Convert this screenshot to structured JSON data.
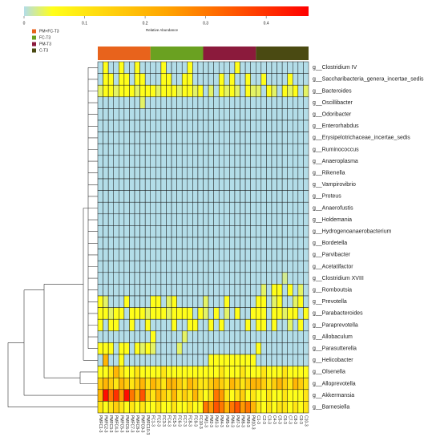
{
  "chart_data": {
    "type": "heatmap",
    "legend_title": "Relative Abundance",
    "clim": [
      0,
      0.47
    ],
    "cticks": [
      0,
      0.1,
      0.2,
      0.3,
      0.4
    ],
    "colors": [
      "#b3dde8",
      "#ffff1a",
      "#ffa500",
      "#ff0000"
    ],
    "groups": [
      {
        "name": "PM+FC-T3",
        "color": "#e8631c",
        "size": 10
      },
      {
        "name": "FC-T3",
        "color": "#6aa121",
        "size": 10
      },
      {
        "name": "PM-T3",
        "color": "#8b1a3c",
        "size": 10
      },
      {
        "name": "C-T3",
        "color": "#4a4a12",
        "size": 10
      }
    ],
    "columns": [
      "PMFC1-3",
      "PMFC2-3",
      "PMFC3-3",
      "PMFC4-3",
      "PMFC5-3",
      "PMFC6-3",
      "PMFC7-3",
      "PMFC8-3",
      "PMFC9-3",
      "PMFC10-3",
      "FC1-3",
      "FC2-3",
      "FC3-3",
      "FC4-3",
      "FC5-3",
      "FC6-3",
      "FC7-3",
      "FC8-3",
      "FC9-3",
      "FC10-3",
      "PM1-3",
      "PM2-3",
      "PM3-3",
      "PM4-3",
      "PM5-3",
      "PM6-3",
      "PM7-3",
      "PM8-3",
      "PM9-3",
      "PM10-3",
      "C1-3",
      "C2-3",
      "C3-3",
      "C4-3",
      "C5-3",
      "C6-3",
      "C7-3",
      "C8-3",
      "C9-3",
      "C10-3"
    ],
    "rows": [
      "g__Clostridium IV",
      "g__Saccharibacteria_genera_incertae_sedis",
      "g__Bacteroides",
      "g__Oscillibacter",
      "g__Odoribacter",
      "g__Enterorhabdus",
      "g__Erysipelotrichaceae_incertae_sedis",
      "g__Ruminococcus",
      "g__Anaeroplasma",
      "g__Rikenella",
      "g__Vampirovibrio",
      "g__Proteus",
      "g__Anaerofustis",
      "g__Holdemania",
      "g__Hydrogenoanaerobacterium",
      "g__Bordetella",
      "g__Parvibacter",
      "g__Acetatifactor",
      "g__Clostridium XVIII",
      "g__Romboutsia",
      "g__Prevotella",
      "g__Parabacteroides",
      "g__Paraprevotella",
      "g__Allobaculum",
      "g__Parasutterella",
      "g__Helicobacter",
      "g__Olsenella",
      "g__Alloprevotella",
      "g__Akkermansia",
      "g__Barnesiella"
    ],
    "values": [
      [
        0,
        0.05,
        0,
        0,
        0.05,
        0,
        0,
        0.05,
        0,
        0,
        0,
        0,
        0.05,
        0,
        0,
        0,
        0,
        0.05,
        0,
        0,
        0,
        0,
        0,
        0,
        0,
        0,
        0.05,
        0,
        0,
        0,
        0,
        0,
        0,
        0,
        0,
        0,
        0,
        0,
        0,
        0
      ],
      [
        0,
        0.05,
        0.05,
        0,
        0.05,
        0.05,
        0,
        0.05,
        0.05,
        0,
        0,
        0,
        0.05,
        0.05,
        0,
        0,
        0.05,
        0.05,
        0,
        0,
        0,
        0,
        0,
        0.05,
        0,
        0.05,
        0,
        0,
        0.05,
        0,
        0,
        0.05,
        0,
        0,
        0,
        0,
        0.05,
        0,
        0,
        0
      ],
      [
        0.03,
        0.05,
        0.05,
        0.03,
        0.05,
        0.05,
        0.05,
        0.03,
        0.05,
        0.05,
        0.05,
        0.03,
        0.05,
        0.05,
        0.05,
        0.03,
        0.05,
        0.05,
        0.03,
        0.05,
        0,
        0.03,
        0,
        0.05,
        0.03,
        0.05,
        0.03,
        0,
        0.05,
        0.03,
        0.03,
        0,
        0.05,
        0.03,
        0,
        0.05,
        0.03,
        0.05,
        0,
        0.03
      ],
      [
        0,
        0,
        0,
        0,
        0,
        0,
        0,
        0,
        0.03,
        0,
        0,
        0,
        0,
        0,
        0,
        0,
        0,
        0,
        0,
        0,
        0,
        0,
        0,
        0,
        0,
        0,
        0,
        0,
        0,
        0,
        0,
        0,
        0,
        0,
        0,
        0,
        0,
        0,
        0,
        0
      ],
      [
        0,
        0,
        0,
        0,
        0,
        0,
        0,
        0,
        0,
        0,
        0,
        0,
        0,
        0,
        0,
        0,
        0,
        0,
        0,
        0,
        0,
        0,
        0,
        0,
        0,
        0,
        0,
        0,
        0,
        0,
        0,
        0,
        0,
        0,
        0,
        0,
        0,
        0,
        0,
        0
      ],
      [
        0,
        0,
        0,
        0,
        0,
        0,
        0,
        0,
        0,
        0,
        0,
        0,
        0,
        0,
        0,
        0,
        0,
        0,
        0,
        0,
        0,
        0,
        0,
        0,
        0,
        0,
        0,
        0,
        0,
        0,
        0,
        0,
        0,
        0,
        0,
        0,
        0,
        0,
        0,
        0
      ],
      [
        0,
        0,
        0,
        0,
        0,
        0,
        0,
        0,
        0,
        0,
        0,
        0,
        0,
        0,
        0,
        0,
        0,
        0,
        0,
        0,
        0,
        0,
        0,
        0,
        0,
        0,
        0,
        0,
        0,
        0,
        0,
        0,
        0,
        0,
        0,
        0,
        0,
        0,
        0,
        0
      ],
      [
        0,
        0,
        0,
        0,
        0,
        0,
        0,
        0,
        0,
        0,
        0,
        0,
        0,
        0,
        0,
        0,
        0,
        0,
        0,
        0,
        0,
        0,
        0,
        0,
        0,
        0,
        0,
        0,
        0,
        0,
        0,
        0,
        0,
        0,
        0,
        0,
        0,
        0,
        0,
        0
      ],
      [
        0,
        0,
        0,
        0,
        0,
        0,
        0,
        0,
        0,
        0,
        0,
        0,
        0,
        0,
        0,
        0,
        0,
        0,
        0,
        0,
        0,
        0,
        0,
        0,
        0,
        0,
        0,
        0,
        0,
        0,
        0,
        0,
        0,
        0,
        0,
        0,
        0,
        0,
        0,
        0
      ],
      [
        0,
        0,
        0,
        0,
        0,
        0,
        0,
        0,
        0,
        0,
        0,
        0,
        0,
        0,
        0,
        0,
        0,
        0,
        0,
        0,
        0,
        0,
        0,
        0,
        0,
        0,
        0,
        0,
        0,
        0,
        0,
        0,
        0,
        0,
        0,
        0,
        0,
        0,
        0,
        0
      ],
      [
        0,
        0,
        0,
        0,
        0,
        0,
        0,
        0,
        0,
        0,
        0,
        0,
        0,
        0,
        0,
        0,
        0,
        0,
        0,
        0,
        0,
        0,
        0,
        0,
        0,
        0,
        0,
        0,
        0,
        0,
        0,
        0,
        0,
        0,
        0,
        0,
        0,
        0,
        0,
        0
      ],
      [
        0,
        0,
        0,
        0,
        0,
        0,
        0,
        0,
        0,
        0,
        0,
        0,
        0,
        0,
        0,
        0,
        0,
        0,
        0,
        0,
        0,
        0,
        0,
        0,
        0,
        0,
        0,
        0,
        0,
        0,
        0,
        0,
        0,
        0,
        0,
        0,
        0,
        0,
        0,
        0
      ],
      [
        0,
        0,
        0,
        0,
        0,
        0,
        0,
        0,
        0,
        0,
        0,
        0,
        0,
        0,
        0,
        0,
        0,
        0,
        0,
        0,
        0,
        0,
        0,
        0,
        0,
        0,
        0,
        0,
        0,
        0,
        0,
        0,
        0,
        0,
        0,
        0,
        0,
        0,
        0,
        0
      ],
      [
        0,
        0,
        0,
        0,
        0,
        0,
        0,
        0,
        0,
        0,
        0,
        0,
        0,
        0,
        0,
        0,
        0,
        0,
        0,
        0,
        0,
        0,
        0,
        0,
        0,
        0,
        0,
        0,
        0,
        0,
        0,
        0,
        0,
        0,
        0,
        0,
        0,
        0,
        0,
        0
      ],
      [
        0,
        0,
        0,
        0,
        0,
        0,
        0,
        0,
        0,
        0,
        0,
        0,
        0,
        0,
        0,
        0,
        0,
        0,
        0,
        0,
        0,
        0,
        0,
        0,
        0,
        0,
        0,
        0,
        0,
        0,
        0,
        0,
        0,
        0,
        0,
        0,
        0,
        0,
        0,
        0
      ],
      [
        0,
        0,
        0,
        0,
        0,
        0,
        0,
        0,
        0,
        0,
        0,
        0,
        0,
        0,
        0,
        0,
        0,
        0,
        0,
        0,
        0,
        0,
        0,
        0,
        0,
        0,
        0,
        0,
        0,
        0,
        0,
        0,
        0,
        0,
        0,
        0,
        0,
        0,
        0,
        0
      ],
      [
        0,
        0,
        0,
        0,
        0,
        0,
        0,
        0,
        0,
        0,
        0,
        0,
        0,
        0,
        0,
        0,
        0,
        0,
        0,
        0,
        0,
        0,
        0,
        0,
        0,
        0,
        0,
        0,
        0,
        0,
        0,
        0,
        0,
        0,
        0,
        0,
        0,
        0,
        0,
        0
      ],
      [
        0,
        0,
        0,
        0,
        0,
        0,
        0,
        0,
        0,
        0,
        0,
        0,
        0,
        0,
        0,
        0,
        0,
        0,
        0,
        0,
        0,
        0,
        0,
        0,
        0,
        0,
        0,
        0,
        0,
        0,
        0,
        0,
        0,
        0,
        0,
        0,
        0,
        0,
        0,
        0
      ],
      [
        0,
        0,
        0,
        0,
        0,
        0,
        0,
        0,
        0,
        0,
        0,
        0,
        0,
        0,
        0,
        0,
        0,
        0,
        0,
        0,
        0,
        0,
        0,
        0,
        0,
        0,
        0,
        0,
        0,
        0,
        0,
        0,
        0,
        0,
        0,
        0.02,
        0,
        0,
        0,
        0
      ],
      [
        0,
        0,
        0,
        0,
        0,
        0,
        0,
        0,
        0,
        0,
        0,
        0,
        0,
        0,
        0,
        0,
        0,
        0,
        0,
        0,
        0,
        0,
        0,
        0,
        0,
        0,
        0,
        0,
        0,
        0,
        0,
        0.03,
        0,
        0.05,
        0.05,
        0,
        0.05,
        0,
        0.03,
        0
      ],
      [
        0.05,
        0.03,
        0,
        0,
        0,
        0.05,
        0,
        0,
        0,
        0,
        0.05,
        0.05,
        0,
        0.03,
        0.05,
        0,
        0,
        0,
        0,
        0,
        0.03,
        0,
        0,
        0,
        0.05,
        0,
        0,
        0,
        0,
        0,
        0.05,
        0.05,
        0,
        0.03,
        0.05,
        0,
        0,
        0.03,
        0.05,
        0
      ],
      [
        0.05,
        0.05,
        0.03,
        0.05,
        0.05,
        0,
        0.05,
        0.05,
        0.05,
        0.03,
        0.05,
        0.05,
        0.05,
        0.03,
        0.05,
        0.05,
        0.05,
        0.05,
        0,
        0.05,
        0.03,
        0,
        0.05,
        0,
        0.03,
        0,
        0.05,
        0,
        0,
        0.05,
        0.05,
        0.05,
        0,
        0.05,
        0.05,
        0.03,
        0.05,
        0.05,
        0,
        0.05
      ],
      [
        0.05,
        0,
        0.05,
        0.05,
        0,
        0,
        0.05,
        0,
        0,
        0.05,
        0,
        0,
        0,
        0,
        0.05,
        0,
        0,
        0.05,
        0.05,
        0,
        0,
        0.05,
        0,
        0.05,
        0,
        0,
        0,
        0,
        0.05,
        0,
        0.05,
        0.05,
        0,
        0.05,
        0,
        0,
        0.03,
        0,
        0.05,
        0
      ],
      [
        0,
        0,
        0,
        0,
        0,
        0,
        0,
        0,
        0,
        0,
        0.05,
        0,
        0,
        0,
        0,
        0,
        0.03,
        0,
        0,
        0,
        0,
        0,
        0,
        0,
        0,
        0,
        0,
        0,
        0,
        0,
        0,
        0,
        0,
        0,
        0,
        0,
        0,
        0,
        0,
        0
      ],
      [
        0.05,
        0.05,
        0.05,
        0,
        0.05,
        0.05,
        0,
        0.05,
        0.03,
        0.05,
        0.03,
        0,
        0,
        0,
        0,
        0.03,
        0,
        0,
        0,
        0,
        0,
        0,
        0,
        0,
        0,
        0,
        0,
        0,
        0,
        0,
        0.05,
        0,
        0,
        0,
        0,
        0,
        0,
        0,
        0,
        0
      ],
      [
        0,
        0.2,
        0,
        0,
        0.05,
        0,
        0,
        0,
        0,
        0,
        0,
        0,
        0,
        0,
        0,
        0,
        0,
        0,
        0,
        0,
        0,
        0.05,
        0.05,
        0.05,
        0.05,
        0.05,
        0.05,
        0.05,
        0.05,
        0.05,
        0,
        0,
        0,
        0,
        0,
        0,
        0,
        0,
        0,
        0
      ],
      [
        0.05,
        0.05,
        0.1,
        0.2,
        0.1,
        0.05,
        0.05,
        0.1,
        0.05,
        0.05,
        0.05,
        0.05,
        0.1,
        0.05,
        0.05,
        0.05,
        0.05,
        0.05,
        0.05,
        0.05,
        0.05,
        0.05,
        0.05,
        0.1,
        0.05,
        0.05,
        0.05,
        0.1,
        0.05,
        0.05,
        0.05,
        0.1,
        0.05,
        0.05,
        0.05,
        0.1,
        0.05,
        0.05,
        0.05,
        0.05
      ],
      [
        0.15,
        0.2,
        0.15,
        0.1,
        0.2,
        0.15,
        0.1,
        0.15,
        0.2,
        0.1,
        0.2,
        0.15,
        0.1,
        0.2,
        0.2,
        0.15,
        0.1,
        0.2,
        0.15,
        0.1,
        0.1,
        0.15,
        0.2,
        0.15,
        0.1,
        0.2,
        0.15,
        0.1,
        0.15,
        0.2,
        0.2,
        0.15,
        0.1,
        0.15,
        0.2,
        0.15,
        0.1,
        0.2,
        0.15,
        0.1
      ],
      [
        0.2,
        0.45,
        0.3,
        0.4,
        0.25,
        0.45,
        0.3,
        0.2,
        0.35,
        0.15,
        0.1,
        0.2,
        0.15,
        0.1,
        0.2,
        0.1,
        0.15,
        0.1,
        0.2,
        0.1,
        0.05,
        0.1,
        0.3,
        0.25,
        0.1,
        0.05,
        0.1,
        0.15,
        0.05,
        0.1,
        0.05,
        0.05,
        0.1,
        0.05,
        0.05,
        0.1,
        0.05,
        0.05,
        0.05,
        0.1
      ],
      [
        0.1,
        0.05,
        0.1,
        0.15,
        0.1,
        0.05,
        0.1,
        0.05,
        0.1,
        0.05,
        0.05,
        0.1,
        0.05,
        0.05,
        0.1,
        0.05,
        0.05,
        0.1,
        0.05,
        0.05,
        0.3,
        0.25,
        0.35,
        0.3,
        0.2,
        0.3,
        0.35,
        0.25,
        0.3,
        0.2,
        0.1,
        0.05,
        0.1,
        0.05,
        0.1,
        0.1,
        0.05,
        0.1,
        0.05,
        0.1
      ]
    ]
  }
}
